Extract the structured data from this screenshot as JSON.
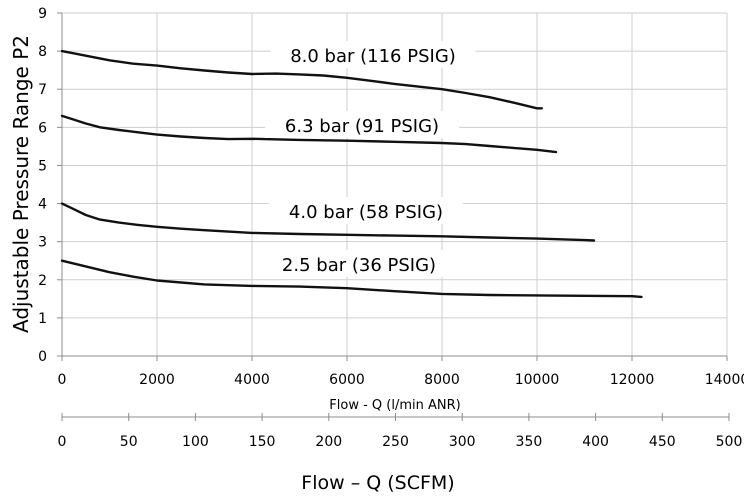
{
  "chart_data": {
    "type": "line",
    "title": "",
    "xlabel": "Flow - Q (l/min ANR)",
    "ylabel": "Adjustable Pressure Range P2",
    "xlim": [
      0,
      14000
    ],
    "ylim": [
      0,
      9
    ],
    "x_ticks": [
      "0",
      "2000",
      "4000",
      "6000",
      "8000",
      "10000",
      "12000",
      "14000"
    ],
    "y_ticks": [
      "0",
      "1",
      "2",
      "3",
      "4",
      "5",
      "6",
      "7",
      "8",
      "9"
    ],
    "grid": true,
    "secondary_x_axis": {
      "label": "Flow – Q (SCFM)",
      "xlim": [
        0,
        500
      ],
      "ticks": [
        "0",
        "50",
        "100",
        "150",
        "200",
        "250",
        "300",
        "350",
        "400",
        "450",
        "500"
      ]
    },
    "series": [
      {
        "name": "8.0 bar (116 PSIG)",
        "x": [
          0,
          500,
          1000,
          1500,
          2000,
          2500,
          3000,
          3500,
          4000,
          4500,
          5000,
          5500,
          6000,
          6500,
          7000,
          7500,
          8000,
          8500,
          9000,
          9500,
          10000,
          10100
        ],
        "y": [
          8.0,
          7.88,
          7.76,
          7.67,
          7.62,
          7.55,
          7.49,
          7.44,
          7.4,
          7.41,
          7.39,
          7.36,
          7.3,
          7.22,
          7.14,
          7.07,
          7.0,
          6.9,
          6.79,
          6.65,
          6.5,
          6.5
        ]
      },
      {
        "name": "6.3 bar (91 PSIG)",
        "x": [
          0,
          200,
          500,
          800,
          1200,
          1600,
          2000,
          2500,
          3000,
          3500,
          4000,
          5000,
          6000,
          7000,
          8000,
          8500,
          9000,
          9500,
          10000,
          10400
        ],
        "y": [
          6.3,
          6.22,
          6.1,
          6.0,
          5.93,
          5.87,
          5.81,
          5.76,
          5.72,
          5.69,
          5.7,
          5.67,
          5.65,
          5.62,
          5.59,
          5.56,
          5.51,
          5.46,
          5.41,
          5.35
        ]
      },
      {
        "name": "4.0 bar (58 PSIG)",
        "x": [
          0,
          200,
          500,
          800,
          1200,
          1600,
          2000,
          2500,
          3000,
          4000,
          5000,
          6000,
          7000,
          8000,
          9000,
          10000,
          11000,
          11200
        ],
        "y": [
          4.0,
          3.88,
          3.7,
          3.58,
          3.5,
          3.44,
          3.39,
          3.34,
          3.3,
          3.23,
          3.2,
          3.18,
          3.16,
          3.14,
          3.11,
          3.08,
          3.04,
          3.03
        ]
      },
      {
        "name": "2.5 bar (36 PSIG)",
        "x": [
          0,
          500,
          1000,
          1500,
          2000,
          3000,
          4000,
          5000,
          6000,
          7000,
          8000,
          9000,
          10000,
          11000,
          12000,
          12200
        ],
        "y": [
          2.5,
          2.35,
          2.2,
          2.08,
          1.98,
          1.88,
          1.84,
          1.82,
          1.78,
          1.7,
          1.63,
          1.6,
          1.59,
          1.58,
          1.57,
          1.55
        ]
      }
    ]
  }
}
